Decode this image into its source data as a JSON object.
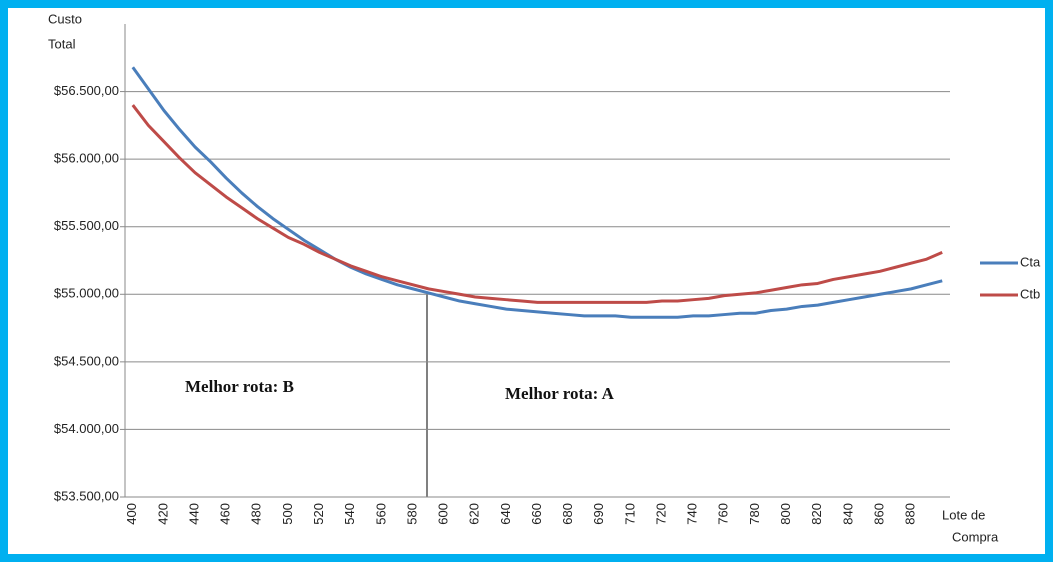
{
  "chart_data": {
    "type": "line",
    "y_label_lines": [
      "Custo",
      "Total"
    ],
    "x_label_lines": [
      "Lote de",
      "Compra"
    ],
    "categories": [
      "400",
      null,
      "420",
      null,
      "440",
      null,
      "460",
      null,
      "480",
      null,
      "500",
      null,
      "520",
      null,
      "540",
      null,
      "560",
      null,
      "580",
      null,
      "600",
      null,
      "620",
      null,
      "640",
      null,
      "660",
      null,
      "680",
      null,
      "690",
      null,
      "710",
      null,
      "720",
      null,
      "740",
      null,
      "760",
      null,
      "780",
      null,
      "800",
      null,
      "820",
      null,
      "840",
      null,
      "860",
      null,
      "880",
      null,
      null
    ],
    "series": [
      {
        "name": "Cta",
        "color": "#4a7ebb",
        "values": [
          56680,
          56520,
          56360,
          56220,
          56090,
          55980,
          55860,
          55750,
          55650,
          55560,
          55480,
          55400,
          55330,
          55260,
          55200,
          55150,
          55110,
          55070,
          55040,
          55010,
          54980,
          54950,
          54930,
          54910,
          54890,
          54880,
          54870,
          54860,
          54850,
          54840,
          54840,
          54840,
          54830,
          54830,
          54830,
          54830,
          54840,
          54840,
          54850,
          54860,
          54860,
          54880,
          54890,
          54910,
          54920,
          54940,
          54960,
          54980,
          55000,
          55020,
          55040,
          55070,
          55100
        ]
      },
      {
        "name": "Ctb",
        "color": "#be4b48",
        "values": [
          56400,
          56250,
          56130,
          56010,
          55900,
          55810,
          55720,
          55640,
          55560,
          55490,
          55420,
          55370,
          55310,
          55260,
          55210,
          55170,
          55130,
          55100,
          55070,
          55040,
          55020,
          55000,
          54980,
          54970,
          54960,
          54950,
          54940,
          54940,
          54940,
          54940,
          54940,
          54940,
          54940,
          54940,
          54950,
          54950,
          54960,
          54970,
          54990,
          55000,
          55010,
          55030,
          55050,
          55070,
          55080,
          55110,
          55130,
          55150,
          55170,
          55200,
          55230,
          55260,
          55310
        ]
      }
    ],
    "ylim": [
      53500,
      57000
    ],
    "yticks": [
      {
        "value": 53500,
        "label": "$53.500,00"
      },
      {
        "value": 54000,
        "label": "$54.000,00"
      },
      {
        "value": 54500,
        "label": "$54.500,00"
      },
      {
        "value": 55000,
        "label": "$55.000,00"
      },
      {
        "value": 55500,
        "label": "$55.500,00"
      },
      {
        "value": 56000,
        "label": "$56.000,00"
      },
      {
        "value": 56500,
        "label": "$56.500,00"
      }
    ],
    "grid": true,
    "legend": "right",
    "annotations": [
      "Melhor rota: B",
      "Melhor rota: A"
    ]
  }
}
